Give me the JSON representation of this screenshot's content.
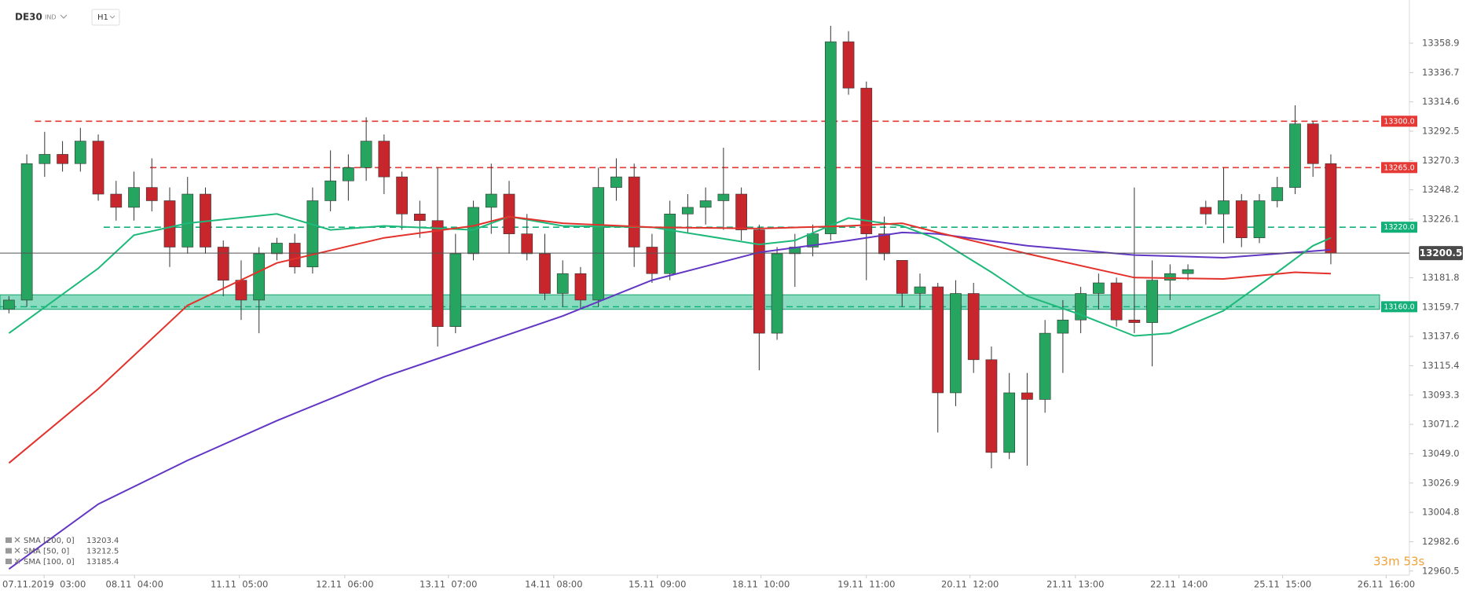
{
  "chart_data": {
    "type": "candlestick",
    "symbol": "DE30",
    "instrument_type": "IND",
    "interval": "H1",
    "countdown": "33m 53s",
    "up_color": "#26a560",
    "down_color": "#c8262d",
    "open": [
      13158,
      13165,
      13268,
      13275,
      13268,
      13285,
      13245,
      13235,
      13250,
      13240,
      13205,
      13245,
      13205,
      13180,
      13165,
      13200,
      13208,
      13190,
      13240,
      13255,
      13265,
      13285,
      13258,
      13230,
      13225,
      13145,
      13200,
      13235,
      13245,
      13215,
      13200,
      13170,
      13185,
      13165,
      13250,
      13258,
      13205,
      13185,
      13230,
      13235,
      13240,
      13245,
      13218,
      13140,
      13200,
      13205,
      13215,
      13360,
      13325,
      13215,
      13195,
      13170,
      13175,
      13095,
      13170,
      13120,
      13050,
      13095,
      13090,
      13140,
      13150,
      13170,
      13178,
      13150,
      13148,
      13180,
      13185,
      13235,
      13230,
      13240,
      13212,
      13240,
      13250,
      13298,
      13268
    ],
    "high": [
      13168,
      13275,
      13292,
      13285,
      13295,
      13290,
      13255,
      13262,
      13272,
      13250,
      13258,
      13250,
      13210,
      13195,
      13205,
      13212,
      13215,
      13250,
      13278,
      13275,
      13303,
      13290,
      13262,
      13240,
      13265,
      13215,
      13240,
      13268,
      13255,
      13230,
      13215,
      13195,
      13190,
      13265,
      13272,
      13268,
      13215,
      13240,
      13245,
      13250,
      13280,
      13250,
      13222,
      13205,
      13215,
      13222,
      13372,
      13368,
      13330,
      13228,
      13195,
      13185,
      13178,
      13180,
      13178,
      13130,
      13110,
      13110,
      13150,
      13165,
      13175,
      13185,
      13182,
      13250,
      13195,
      13192,
      13192,
      13240,
      13265,
      13245,
      13245,
      13258,
      13312,
      13300,
      13275
    ],
    "low": [
      13155,
      13160,
      13258,
      13262,
      13262,
      13240,
      13225,
      13225,
      13232,
      13190,
      13200,
      13200,
      13168,
      13150,
      13140,
      13195,
      13185,
      13185,
      13232,
      13240,
      13255,
      13245,
      13218,
      13212,
      13130,
      13140,
      13195,
      13215,
      13200,
      13195,
      13165,
      13160,
      13158,
      13160,
      13240,
      13190,
      13178,
      13180,
      13215,
      13222,
      13218,
      13210,
      13112,
      13135,
      13175,
      13198,
      13210,
      13320,
      13180,
      13195,
      13160,
      13158,
      13065,
      13085,
      13110,
      13038,
      13045,
      13040,
      13080,
      13110,
      13140,
      13158,
      13145,
      13140,
      13115,
      13165,
      13180,
      13222,
      13208,
      13205,
      13208,
      13235,
      13245,
      13258,
      13192
    ],
    "close": [
      13165,
      13268,
      13275,
      13268,
      13285,
      13245,
      13235,
      13250,
      13240,
      13205,
      13245,
      13205,
      13180,
      13165,
      13200,
      13208,
      13190,
      13240,
      13255,
      13265,
      13285,
      13258,
      13230,
      13225,
      13145,
      13200,
      13235,
      13245,
      13215,
      13200,
      13170,
      13185,
      13165,
      13250,
      13258,
      13205,
      13185,
      13230,
      13235,
      13240,
      13245,
      13218,
      13140,
      13200,
      13205,
      13215,
      13360,
      13325,
      13215,
      13200,
      13170,
      13175,
      13095,
      13170,
      13120,
      13050,
      13095,
      13090,
      13140,
      13150,
      13170,
      13178,
      13150,
      13148,
      13180,
      13185,
      13188,
      13230,
      13240,
      13212,
      13240,
      13250,
      13298,
      13268,
      13200.5
    ],
    "series": [
      {
        "name": "SMA [200, 0]",
        "last_value": 13203.4,
        "color": "#6236c4",
        "x": [
          0,
          5,
          10,
          15,
          21,
          26,
          31,
          36,
          42,
          47,
          50,
          52,
          57,
          63,
          68,
          74
        ],
        "values": [
          12962,
          13011,
          13044,
          13074,
          13107,
          13130,
          13153,
          13180,
          13201,
          13210,
          13216,
          13215,
          13206,
          13199,
          13197,
          13203
        ]
      },
      {
        "name": "SMA [50, 0]",
        "last_value": 13212.5,
        "color": "#1db97a",
        "x": [
          0,
          5,
          7,
          10,
          15,
          18,
          21,
          26,
          28,
          31,
          36,
          42,
          44,
          47,
          50,
          52,
          55,
          57,
          60,
          63,
          65,
          68,
          71,
          73,
          74
        ],
        "values": [
          13140,
          13189,
          13214,
          13223,
          13230,
          13218,
          13221,
          13218,
          13228,
          13221,
          13220,
          13207,
          13210,
          13227,
          13221,
          13211,
          13186,
          13168,
          13154,
          13138,
          13140,
          13157,
          13186,
          13206,
          13212
        ]
      },
      {
        "name": "SMA [100, 0]",
        "last_value": 13185.4,
        "color": "#e3312b",
        "x": [
          0,
          5,
          10,
          15,
          21,
          26,
          28,
          31,
          36,
          42,
          47,
          50,
          52,
          57,
          63,
          68,
          72,
          74
        ],
        "values": [
          13042,
          13098,
          13161,
          13193,
          13212,
          13221,
          13228,
          13223,
          13220,
          13219,
          13221,
          13223,
          13216,
          13200,
          13182,
          13181,
          13186,
          13185
        ]
      }
    ],
    "levels": [
      {
        "value": 13300,
        "label": "13300.0",
        "color": "#e53935",
        "from": 1.45
      },
      {
        "value": 13265,
        "label": "13265.0",
        "color": "#e53935",
        "from": 7.9
      },
      {
        "value": 13220,
        "label": "13220.0",
        "color": "#14b07a",
        "from": 5.3
      },
      {
        "value": 13160,
        "label": "13160.0",
        "color": "#14b07a",
        "from": -0.5
      }
    ],
    "zone": [
      13158,
      13169
    ],
    "zone_color": "#3cc596",
    "last_price": 13200.5,
    "xlim": [
      -0.5,
      78.4
    ],
    "ylim": [
      12957.4,
      13391.5
    ],
    "xticks": [
      {
        "value": 1.97,
        "label": "07.11.2019  03:00"
      },
      {
        "value": 7.03,
        "label": "08.11  04:00"
      },
      {
        "value": 12.9,
        "label": "11.11  05:00"
      },
      {
        "value": 18.8,
        "label": "12.11  06:00"
      },
      {
        "value": 24.6,
        "label": "13.11  07:00"
      },
      {
        "value": 30.5,
        "label": "14.11  08:00"
      },
      {
        "value": 36.3,
        "label": "15.11  09:00"
      },
      {
        "value": 42.1,
        "label": "18.11  10:00"
      },
      {
        "value": 48.0,
        "label": "19.11  11:00"
      },
      {
        "value": 53.8,
        "label": "20.11  12:00"
      },
      {
        "value": 59.7,
        "label": "21.11  13:00"
      },
      {
        "value": 65.5,
        "label": "22.11  14:00"
      },
      {
        "value": 71.3,
        "label": "25.11  15:00"
      },
      {
        "value": 77.1,
        "label": "26.11  16:00"
      }
    ],
    "yticks": [
      13358.9,
      13336.7,
      13314.6,
      13292.5,
      13270.3,
      13248.2,
      13226.1,
      13181.8,
      13159.7,
      13137.6,
      13115.4,
      13093.3,
      13071.2,
      {
        "value": 13049,
        "label": "13049.0"
      },
      13026.9,
      13004.8,
      12982.6,
      12960.5
    ]
  }
}
